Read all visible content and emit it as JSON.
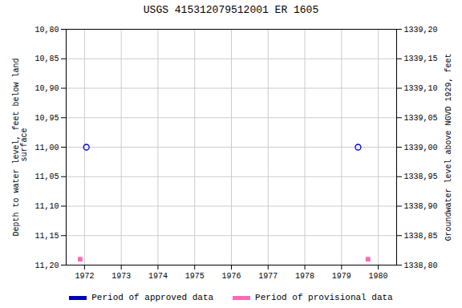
{
  "chart_data": {
    "type": "scatter",
    "title": "USGS 415312079512001 ER  1605",
    "ylabel": "Depth to water level, feet below land\n surface",
    "y2label": "Groundwater level above NGVD 1929, feet",
    "xlim": [
      1971.5,
      1980.5
    ],
    "xticks": [
      1972,
      1973,
      1974,
      1975,
      1976,
      1977,
      1978,
      1979,
      1980
    ],
    "ylim": [
      10.8,
      11.2
    ],
    "yticks": [
      {
        "value": 10.8,
        "label": "10,80"
      },
      {
        "value": 10.85,
        "label": "10,85"
      },
      {
        "value": 10.9,
        "label": "10,90"
      },
      {
        "value": 10.95,
        "label": "10,95"
      },
      {
        "value": 11.0,
        "label": "11,00"
      },
      {
        "value": 11.05,
        "label": "11,05"
      },
      {
        "value": 11.1,
        "label": "11,10"
      },
      {
        "value": 11.15,
        "label": "11,15"
      },
      {
        "value": 11.2,
        "label": "11,20"
      }
    ],
    "y2lim": [
      1338.8,
      1339.2
    ],
    "y2ticks": [
      {
        "value": 1338.8,
        "label": "1338,80"
      },
      {
        "value": 1338.85,
        "label": "1338,85"
      },
      {
        "value": 1338.9,
        "label": "1338,90"
      },
      {
        "value": 1338.95,
        "label": "1338,95"
      },
      {
        "value": 1339.0,
        "label": "1339,00"
      },
      {
        "value": 1339.05,
        "label": "1339,05"
      },
      {
        "value": 1339.1,
        "label": "1339,10"
      },
      {
        "value": 1339.15,
        "label": "1339,15"
      },
      {
        "value": 1339.2,
        "label": "1339,20"
      }
    ],
    "grid": true,
    "legend": "bottom",
    "series": [
      {
        "name": "Period of approved data",
        "color": "#0000bb",
        "marker": "circle_open",
        "x": [
          1972.05,
          1979.45
        ],
        "values": [
          11.0,
          11.0
        ]
      },
      {
        "name": "Period of provisional data",
        "color": "#ff69b4",
        "marker": "square",
        "x": [
          1971.88,
          1979.72
        ],
        "values": [
          11.19,
          11.19
        ]
      }
    ]
  }
}
